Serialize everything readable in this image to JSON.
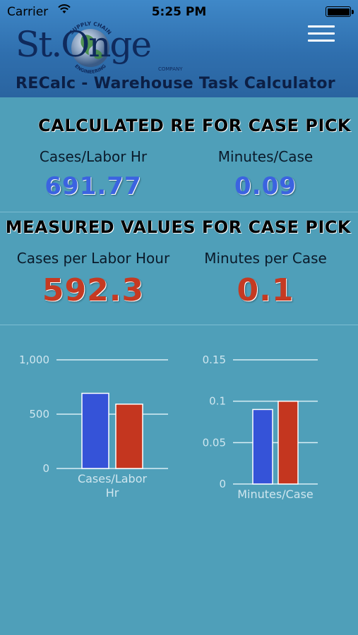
{
  "status_bar": {
    "carrier": "Carrier",
    "time": "5:25 PM"
  },
  "logo": {
    "text": "St.Onge",
    "ring_top": "SUPPLY CHAIN",
    "ring_bottom": "ENGINEERING",
    "small": "COMPANY"
  },
  "header": {
    "title": "RECalc - Warehouse Task Calculator"
  },
  "calculated": {
    "title": "CALCULATED RE FOR CASE PICK",
    "col1_label": "Cases/Labor Hr",
    "col1_value": "691.77",
    "col2_label": "Minutes/Case",
    "col2_value": "0.09"
  },
  "measured": {
    "title": "MEASURED VALUES FOR CASE PICK",
    "col1_label": "Cases per Labor Hour",
    "col1_value": "592.3",
    "col2_label": "Minutes per Case",
    "col2_value": "0.1"
  },
  "colors": {
    "calculated": "#3553d8",
    "measured": "#c4361f"
  },
  "chart_data": [
    {
      "type": "bar",
      "categories": [
        "Cases/Labor Hr"
      ],
      "xlabel_lines": [
        "Cases/Labor",
        "Hr"
      ],
      "series": [
        {
          "values": [
            691.77
          ]
        },
        {
          "values": [
            592.3
          ]
        }
      ],
      "ylim": [
        0,
        1000
      ],
      "yticks": [
        0,
        500,
        1000
      ],
      "ytick_labels": [
        "0",
        "500",
        "1,000"
      ],
      "grid": true
    },
    {
      "type": "bar",
      "categories": [
        "Minutes/Case"
      ],
      "xlabel_lines": [
        "Minutes/Case"
      ],
      "series": [
        {
          "values": [
            0.09
          ]
        },
        {
          "values": [
            0.1
          ]
        }
      ],
      "ylim": [
        0,
        0.15
      ],
      "yticks": [
        0,
        0.05,
        0.1,
        0.15
      ],
      "ytick_labels": [
        "0",
        "0.05",
        "0.1",
        "0.15"
      ],
      "grid": true
    }
  ]
}
